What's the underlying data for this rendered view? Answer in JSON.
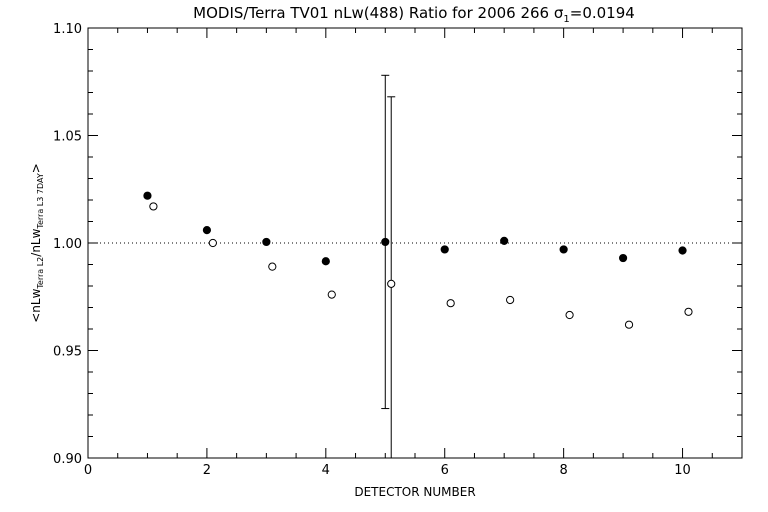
{
  "chart_data": {
    "type": "scatter",
    "title": "MODIS/Terra TV01 nLw(488) Ratio for 2006 266 σ1=0.0194",
    "title_parts": {
      "main": "MODIS/Terra TV01 nLw(488) Ratio for 2006 266 σ",
      "sub": "1",
      "tail": "=0.0194"
    },
    "xlabel": "DETECTOR NUMBER",
    "ylabel_parts": {
      "pre": "<nLw",
      "sub1": "Terra L2",
      "mid": "/nLw",
      "sub2": "Terra L3 7DAY",
      "post": ">"
    },
    "xlim": [
      0,
      11
    ],
    "ylim": [
      0.9,
      1.1
    ],
    "x_ticks": [
      0,
      2,
      4,
      6,
      8,
      10
    ],
    "x_tick_labels": [
      "0",
      "2",
      "4",
      "6",
      "8",
      "10"
    ],
    "y_ticks": [
      0.9,
      0.95,
      1.0,
      1.05,
      1.1
    ],
    "y_tick_labels": [
      "0.90",
      "0.95",
      "1.00",
      "1.05",
      "1.10"
    ],
    "reference_line": 1.0,
    "grid": false,
    "legend": "none",
    "series": [
      {
        "marker": "filled-circle",
        "x": [
          1,
          2,
          3,
          4,
          5,
          6,
          7,
          8,
          9,
          10
        ],
        "y": [
          1.022,
          1.006,
          1.0005,
          0.9915,
          1.0005,
          0.997,
          1.001,
          0.997,
          0.993,
          0.9965
        ]
      },
      {
        "marker": "open-circle",
        "x": [
          1.1,
          2.1,
          3.1,
          4.1,
          5.1,
          6.1,
          7.1,
          8.1,
          9.1,
          10.1
        ],
        "y": [
          1.017,
          1.0,
          0.989,
          0.976,
          0.981,
          0.972,
          0.9735,
          0.9665,
          0.962,
          0.968
        ]
      }
    ],
    "error_bars": [
      {
        "x": 5,
        "low": 0.923,
        "high": 1.078
      },
      {
        "x": 5.1,
        "low": 0.9,
        "high": 1.068
      }
    ]
  }
}
